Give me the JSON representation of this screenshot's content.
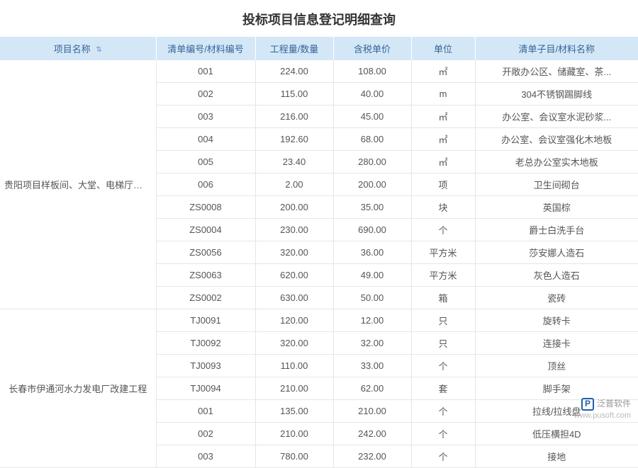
{
  "title": "投标项目信息登记明细查询",
  "columns": [
    "项目名称",
    "清单编号/材料编号",
    "工程量/数量",
    "含税单价",
    "单位",
    "清单子目/材料名称"
  ],
  "groups": [
    {
      "project": "贵阳项目样板间、大堂、电梯厅装修工程",
      "rows": [
        {
          "code": "001",
          "qty": "224.00",
          "price": "108.00",
          "unit": "㎡",
          "desc": "开敞办公区、储藏室、茶..."
        },
        {
          "code": "002",
          "qty": "115.00",
          "price": "40.00",
          "unit": "m",
          "desc": "304不锈钢踢脚线"
        },
        {
          "code": "003",
          "qty": "216.00",
          "price": "45.00",
          "unit": "㎡",
          "desc": "办公室、会议室水泥砂浆..."
        },
        {
          "code": "004",
          "qty": "192.60",
          "price": "68.00",
          "unit": "㎡",
          "desc": "办公室、会议室强化木地板"
        },
        {
          "code": "005",
          "qty": "23.40",
          "price": "280.00",
          "unit": "㎡",
          "desc": "老总办公室实木地板"
        },
        {
          "code": "006",
          "qty": "2.00",
          "price": "200.00",
          "unit": "项",
          "desc": "卫生间砌台"
        },
        {
          "code": "ZS0008",
          "qty": "200.00",
          "price": "35.00",
          "unit": "块",
          "desc": "英国棕"
        },
        {
          "code": "ZS0004",
          "qty": "230.00",
          "price": "690.00",
          "unit": "个",
          "desc": "爵士白洗手台"
        },
        {
          "code": "ZS0056",
          "qty": "320.00",
          "price": "36.00",
          "unit": "平方米",
          "desc": "莎安娜人造石"
        },
        {
          "code": "ZS0063",
          "qty": "620.00",
          "price": "49.00",
          "unit": "平方米",
          "desc": "灰色人造石"
        },
        {
          "code": "ZS0002",
          "qty": "630.00",
          "price": "50.00",
          "unit": "箱",
          "desc": "瓷砖"
        }
      ]
    },
    {
      "project": "长春市伊通河水力发电厂改建工程",
      "rows": [
        {
          "code": "TJ0091",
          "qty": "120.00",
          "price": "12.00",
          "unit": "只",
          "desc": "旋转卡"
        },
        {
          "code": "TJ0092",
          "qty": "320.00",
          "price": "32.00",
          "unit": "只",
          "desc": "连接卡"
        },
        {
          "code": "TJ0093",
          "qty": "110.00",
          "price": "33.00",
          "unit": "个",
          "desc": "顶丝"
        },
        {
          "code": "TJ0094",
          "qty": "210.00",
          "price": "62.00",
          "unit": "套",
          "desc": "脚手架"
        },
        {
          "code": "001",
          "qty": "135.00",
          "price": "210.00",
          "unit": "个",
          "desc": "拉线/拉线盘"
        },
        {
          "code": "002",
          "qty": "210.00",
          "price": "242.00",
          "unit": "个",
          "desc": "低压横担4D"
        },
        {
          "code": "003",
          "qty": "780.00",
          "price": "232.00",
          "unit": "个",
          "desc": "接地"
        }
      ]
    }
  ],
  "watermark": {
    "brand": "泛普软件",
    "url": "www.pusoft.com",
    "glyph": "P"
  },
  "style": {
    "header_bg": "#d4e7f7",
    "header_color": "#336699",
    "border_color": "#e6e6e6",
    "title_fontsize": 18,
    "cell_fontsize": 13
  }
}
